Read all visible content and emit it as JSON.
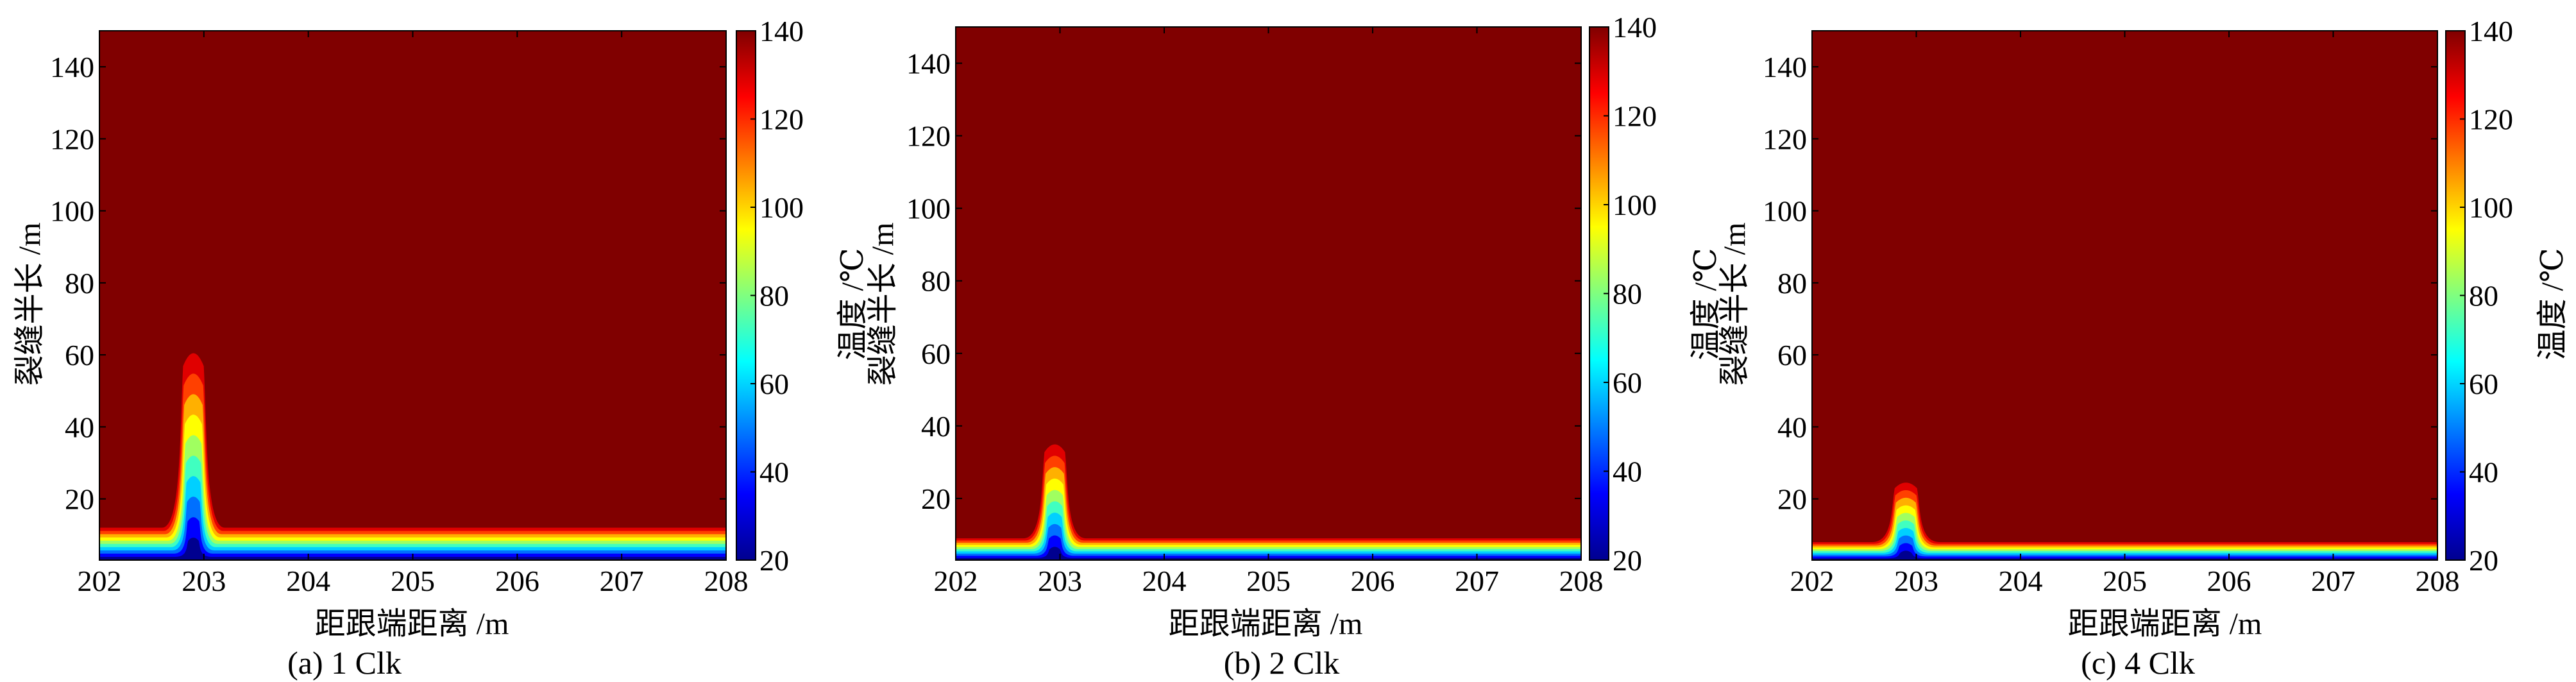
{
  "figure": {
    "panels": [
      {
        "caption": "(a) 1 Clk",
        "xlabel": "距跟端距离 /m",
        "ylabel": "裂缝半长 /m",
        "colorbar_label": "温度 /℃"
      },
      {
        "caption": "(b) 2 Clk",
        "xlabel": "距跟端距离 /m",
        "ylabel": "裂缝半长 /m",
        "colorbar_label": "温度 /℃"
      },
      {
        "caption": "(c) 4 Clk",
        "xlabel": "距跟端距离 /m",
        "ylabel": "裂缝半长 /m",
        "colorbar_label": "温度 /℃"
      }
    ]
  },
  "chart_data": [
    {
      "type": "heatmap",
      "title": "",
      "caption": "(a) 1 Clk",
      "xlabel": "距跟端距离 /m",
      "ylabel": "裂缝半长 /m",
      "colorbar_label": "温度 /℃",
      "xlim": [
        202,
        208
      ],
      "ylim": [
        3,
        150
      ],
      "xticks": [
        202,
        203,
        204,
        205,
        206,
        207,
        208
      ],
      "yticks": [
        20,
        40,
        60,
        80,
        100,
        120,
        140
      ],
      "color_range": [
        20,
        140
      ],
      "colorbar_ticks": [
        20,
        40,
        60,
        80,
        100,
        120,
        140
      ],
      "colormap": "jet",
      "grid": false,
      "background_value": 140,
      "peak": {
        "x_center": 202.9,
        "half_width": 0.12,
        "y_top": 63
      },
      "band_height": 9,
      "contour_levels": [
        {
          "value": 20,
          "color": "#00008f"
        },
        {
          "value": 35,
          "color": "#0000ff"
        },
        {
          "value": 50,
          "color": "#0070ff"
        },
        {
          "value": 62,
          "color": "#00d0ff"
        },
        {
          "value": 75,
          "color": "#40ffc0"
        },
        {
          "value": 88,
          "color": "#a0ff60"
        },
        {
          "value": 100,
          "color": "#ffff00"
        },
        {
          "value": 112,
          "color": "#ffb000"
        },
        {
          "value": 124,
          "color": "#ff4000"
        },
        {
          "value": 132,
          "color": "#e00000"
        },
        {
          "value": 140,
          "color": "#800000"
        }
      ]
    },
    {
      "type": "heatmap",
      "title": "",
      "caption": "(b) 2 Clk",
      "xlabel": "距跟端距离 /m",
      "ylabel": "裂缝半长 /m",
      "colorbar_label": "温度 /℃",
      "xlim": [
        202,
        208
      ],
      "ylim": [
        3,
        150
      ],
      "xticks": [
        202,
        203,
        204,
        205,
        206,
        207,
        208
      ],
      "yticks": [
        20,
        40,
        60,
        80,
        100,
        120,
        140
      ],
      "color_range": [
        20,
        140
      ],
      "colorbar_ticks": [
        20,
        40,
        60,
        80,
        100,
        120,
        140
      ],
      "colormap": "jet",
      "grid": false,
      "background_value": 140,
      "peak": {
        "x_center": 202.95,
        "half_width": 0.12,
        "y_top": 36
      },
      "band_height": 6,
      "contour_levels": [
        {
          "value": 20,
          "color": "#00008f"
        },
        {
          "value": 35,
          "color": "#0000ff"
        },
        {
          "value": 50,
          "color": "#0070ff"
        },
        {
          "value": 62,
          "color": "#00d0ff"
        },
        {
          "value": 75,
          "color": "#40ffc0"
        },
        {
          "value": 88,
          "color": "#a0ff60"
        },
        {
          "value": 100,
          "color": "#ffff00"
        },
        {
          "value": 112,
          "color": "#ffb000"
        },
        {
          "value": 124,
          "color": "#ff4000"
        },
        {
          "value": 132,
          "color": "#e00000"
        },
        {
          "value": 140,
          "color": "#800000"
        }
      ]
    },
    {
      "type": "heatmap",
      "title": "",
      "caption": "(c) 4 Clk",
      "xlabel": "距跟端距离 /m",
      "ylabel": "裂缝半长 /m",
      "colorbar_label": "温度 /℃",
      "xlim": [
        202,
        208
      ],
      "ylim": [
        3,
        150
      ],
      "xticks": [
        202,
        203,
        204,
        205,
        206,
        207,
        208
      ],
      "yticks": [
        20,
        40,
        60,
        80,
        100,
        120,
        140
      ],
      "color_range": [
        20,
        140
      ],
      "colorbar_ticks": [
        20,
        40,
        60,
        80,
        100,
        120,
        140
      ],
      "colormap": "jet",
      "grid": false,
      "background_value": 140,
      "peak": {
        "x_center": 202.9,
        "half_width": 0.13,
        "y_top": 25
      },
      "band_height": 5,
      "contour_levels": [
        {
          "value": 20,
          "color": "#00008f"
        },
        {
          "value": 35,
          "color": "#0000ff"
        },
        {
          "value": 50,
          "color": "#0070ff"
        },
        {
          "value": 62,
          "color": "#00d0ff"
        },
        {
          "value": 75,
          "color": "#40ffc0"
        },
        {
          "value": 88,
          "color": "#a0ff60"
        },
        {
          "value": 100,
          "color": "#ffff00"
        },
        {
          "value": 112,
          "color": "#ffb000"
        },
        {
          "value": 124,
          "color": "#ff4000"
        },
        {
          "value": 132,
          "color": "#e00000"
        },
        {
          "value": 140,
          "color": "#800000"
        }
      ]
    }
  ]
}
